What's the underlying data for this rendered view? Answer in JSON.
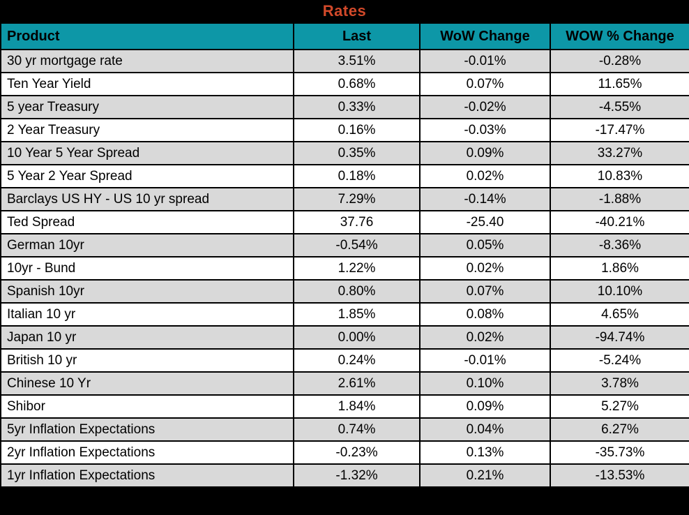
{
  "title": "Rates",
  "colors": {
    "title_bg": "#000000",
    "title_text": "#d2492a",
    "header_bg": "#0d97a7",
    "header_text": "#000000",
    "row_alt_bg": "#d9d9d9",
    "row_bg": "#ffffff",
    "grid": "#000000"
  },
  "table": {
    "columns": [
      "Product",
      "Last",
      "WoW Change",
      "WOW % Change"
    ],
    "rows": [
      {
        "cells": [
          "30 yr mortgage rate",
          "3.51%",
          "-0.01%",
          "-0.28%"
        ]
      },
      {
        "cells": [
          "Ten Year Yield",
          "0.68%",
          "0.07%",
          "11.65%"
        ]
      },
      {
        "cells": [
          "5 year Treasury",
          "0.33%",
          "-0.02%",
          "-4.55%"
        ]
      },
      {
        "cells": [
          "2 Year Treasury",
          "0.16%",
          "-0.03%",
          "-17.47%"
        ]
      },
      {
        "cells": [
          "10 Year 5 Year Spread",
          "0.35%",
          "0.09%",
          "33.27%"
        ]
      },
      {
        "cells": [
          "5 Year 2 Year Spread",
          "0.18%",
          "0.02%",
          "10.83%"
        ]
      },
      {
        "cells": [
          "Barclays US HY - US 10 yr spread",
          "7.29%",
          "-0.14%",
          "-1.88%"
        ]
      },
      {
        "cells": [
          "Ted Spread",
          "37.76",
          "-25.40",
          "-40.21%"
        ]
      },
      {
        "cells": [
          "German 10yr",
          "-0.54%",
          "0.05%",
          "-8.36%"
        ]
      },
      {
        "cells": [
          "10yr - Bund",
          "1.22%",
          "0.02%",
          "1.86%"
        ]
      },
      {
        "cells": [
          "Spanish 10yr",
          "0.80%",
          "0.07%",
          "10.10%"
        ]
      },
      {
        "cells": [
          "Italian 10 yr",
          "1.85%",
          "0.08%",
          "4.65%"
        ]
      },
      {
        "cells": [
          "Japan 10 yr",
          "0.00%",
          "0.02%",
          "-94.74%"
        ]
      },
      {
        "cells": [
          "British 10 yr",
          "0.24%",
          "-0.01%",
          "-5.24%"
        ]
      },
      {
        "cells": [
          "Chinese 10 Yr",
          "2.61%",
          "0.10%",
          "3.78%"
        ]
      },
      {
        "cells": [
          "Shibor",
          "1.84%",
          "0.09%",
          "5.27%"
        ]
      },
      {
        "cells": [
          "5yr Inflation Expectations",
          "0.74%",
          "0.04%",
          "6.27%"
        ]
      },
      {
        "cells": [
          "2yr Inflation Expectations",
          "-0.23%",
          "0.13%",
          "-35.73%"
        ]
      },
      {
        "cells": [
          "1yr Inflation Expectations",
          "-1.32%",
          "0.21%",
          "-13.53%"
        ]
      }
    ]
  },
  "chart_data": {
    "type": "table",
    "title": "Rates",
    "columns": [
      "Product",
      "Last",
      "WoW Change",
      "WOW % Change"
    ],
    "rows": [
      [
        "30 yr mortgage rate",
        "3.51%",
        "-0.01%",
        "-0.28%"
      ],
      [
        "Ten Year Yield",
        "0.68%",
        "0.07%",
        "11.65%"
      ],
      [
        "5 year Treasury",
        "0.33%",
        "-0.02%",
        "-4.55%"
      ],
      [
        "2 Year Treasury",
        "0.16%",
        "-0.03%",
        "-17.47%"
      ],
      [
        "10 Year 5 Year Spread",
        "0.35%",
        "0.09%",
        "33.27%"
      ],
      [
        "5 Year 2 Year Spread",
        "0.18%",
        "0.02%",
        "10.83%"
      ],
      [
        "Barclays US HY - US 10 yr spread",
        "7.29%",
        "-0.14%",
        "-1.88%"
      ],
      [
        "Ted Spread",
        "37.76",
        "-25.40",
        "-40.21%"
      ],
      [
        "German 10yr",
        "-0.54%",
        "0.05%",
        "-8.36%"
      ],
      [
        "10yr - Bund",
        "1.22%",
        "0.02%",
        "1.86%"
      ],
      [
        "Spanish 10yr",
        "0.80%",
        "0.07%",
        "10.10%"
      ],
      [
        "Italian 10 yr",
        "1.85%",
        "0.08%",
        "4.65%"
      ],
      [
        "Japan 10 yr",
        "0.00%",
        "0.02%",
        "-94.74%"
      ],
      [
        "British 10 yr",
        "0.24%",
        "-0.01%",
        "-5.24%"
      ],
      [
        "Chinese 10 Yr",
        "2.61%",
        "0.10%",
        "3.78%"
      ],
      [
        "Shibor",
        "1.84%",
        "0.09%",
        "5.27%"
      ],
      [
        "5yr Inflation Expectations",
        "0.74%",
        "0.04%",
        "6.27%"
      ],
      [
        "2yr Inflation Expectations",
        "-0.23%",
        "0.13%",
        "-35.73%"
      ],
      [
        "1yr Inflation Expectations",
        "-1.32%",
        "0.21%",
        "-13.53%"
      ]
    ]
  }
}
